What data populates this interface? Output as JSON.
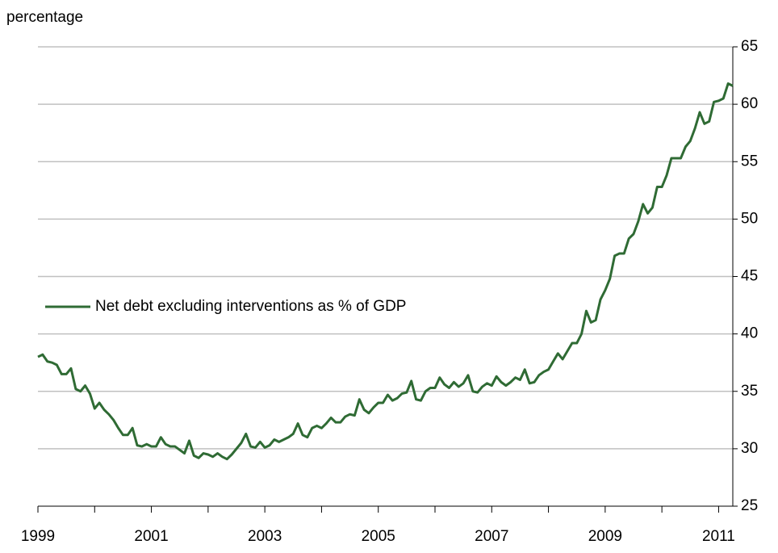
{
  "chart_data": {
    "type": "line",
    "y_axis_label": "percentage",
    "x": [
      1999,
      1999.083,
      1999.167,
      1999.25,
      1999.333,
      1999.417,
      1999.5,
      1999.583,
      1999.667,
      1999.75,
      1999.833,
      1999.917,
      2000,
      2000.083,
      2000.167,
      2000.25,
      2000.333,
      2000.417,
      2000.5,
      2000.583,
      2000.667,
      2000.75,
      2000.833,
      2000.917,
      2001,
      2001.083,
      2001.167,
      2001.25,
      2001.333,
      2001.417,
      2001.5,
      2001.583,
      2001.667,
      2001.75,
      2001.833,
      2001.917,
      2002,
      2002.083,
      2002.167,
      2002.25,
      2002.333,
      2002.417,
      2002.5,
      2002.583,
      2002.667,
      2002.75,
      2002.833,
      2002.917,
      2003,
      2003.083,
      2003.167,
      2003.25,
      2003.333,
      2003.417,
      2003.5,
      2003.583,
      2003.667,
      2003.75,
      2003.833,
      2003.917,
      2004,
      2004.083,
      2004.167,
      2004.25,
      2004.333,
      2004.417,
      2004.5,
      2004.583,
      2004.667,
      2004.75,
      2004.833,
      2004.917,
      2005,
      2005.083,
      2005.167,
      2005.25,
      2005.333,
      2005.417,
      2005.5,
      2005.583,
      2005.667,
      2005.75,
      2005.833,
      2005.917,
      2006,
      2006.083,
      2006.167,
      2006.25,
      2006.333,
      2006.417,
      2006.5,
      2006.583,
      2006.667,
      2006.75,
      2006.833,
      2006.917,
      2007,
      2007.083,
      2007.167,
      2007.25,
      2007.333,
      2007.417,
      2007.5,
      2007.583,
      2007.667,
      2007.75,
      2007.833,
      2007.917,
      2008,
      2008.083,
      2008.167,
      2008.25,
      2008.333,
      2008.417,
      2008.5,
      2008.583,
      2008.667,
      2008.75,
      2008.833,
      2008.917,
      2009,
      2009.083,
      2009.167,
      2009.25,
      2009.333,
      2009.417,
      2009.5,
      2009.583,
      2009.667,
      2009.75,
      2009.833,
      2009.917,
      2010,
      2010.083,
      2010.167,
      2010.25,
      2010.333,
      2010.417,
      2010.5,
      2010.583,
      2010.667,
      2010.75,
      2010.833,
      2010.917,
      2011,
      2011.083,
      2011.167,
      2011.25
    ],
    "series": [
      {
        "name": "Net debt excluding interventions as % of GDP",
        "color": "#2f6b34",
        "values": [
          38,
          38.2,
          37.6,
          37.5,
          37.3,
          36.5,
          36.5,
          37,
          35.2,
          35,
          35.5,
          34.8,
          33.5,
          34,
          33.4,
          33,
          32.5,
          31.8,
          31.2,
          31.2,
          31.8,
          30.3,
          30.2,
          30.4,
          30.2,
          30.2,
          31,
          30.4,
          30.2,
          30.2,
          29.9,
          29.6,
          30.7,
          29.4,
          29.2,
          29.6,
          29.5,
          29.3,
          29.6,
          29.3,
          29.1,
          29.5,
          30,
          30.5,
          31.3,
          30.2,
          30.1,
          30.6,
          30.1,
          30.3,
          30.8,
          30.6,
          30.8,
          31,
          31.3,
          32.2,
          31.2,
          31,
          31.8,
          32,
          31.8,
          32.2,
          32.7,
          32.3,
          32.3,
          32.8,
          33,
          32.9,
          34.3,
          33.4,
          33.1,
          33.6,
          34,
          34,
          34.7,
          34.2,
          34.4,
          34.8,
          34.9,
          35.9,
          34.3,
          34.2,
          35,
          35.3,
          35.3,
          36.2,
          35.6,
          35.3,
          35.8,
          35.4,
          35.7,
          36.4,
          35,
          34.9,
          35.4,
          35.7,
          35.5,
          36.3,
          35.8,
          35.5,
          35.8,
          36.2,
          36,
          36.9,
          35.7,
          35.8,
          36.4,
          36.7,
          36.9,
          37.6,
          38.3,
          37.8,
          38.5,
          39.2,
          39.2,
          40,
          42,
          41,
          41.2,
          43,
          43.8,
          44.8,
          46.8,
          47,
          47,
          48.3,
          48.7,
          49.8,
          51.3,
          50.5,
          51,
          52.8,
          52.8,
          53.8,
          55.3,
          55.3,
          55.3,
          56.3,
          56.8,
          57.9,
          59.3,
          58.3,
          58.5,
          60.2,
          60.3,
          60.5,
          61.8,
          61.6
        ]
      }
    ],
    "xlim": [
      1999,
      2011.25
    ],
    "xticks": [
      1999,
      2001,
      2003,
      2005,
      2007,
      2009,
      2011
    ],
    "xticks_minor": [
      2000,
      2002,
      2004,
      2006,
      2008,
      2010
    ],
    "ylim": [
      25,
      65
    ],
    "yticks": [
      25,
      30,
      35,
      40,
      45,
      50,
      55,
      60,
      65
    ],
    "grid": true,
    "legend": "left"
  }
}
